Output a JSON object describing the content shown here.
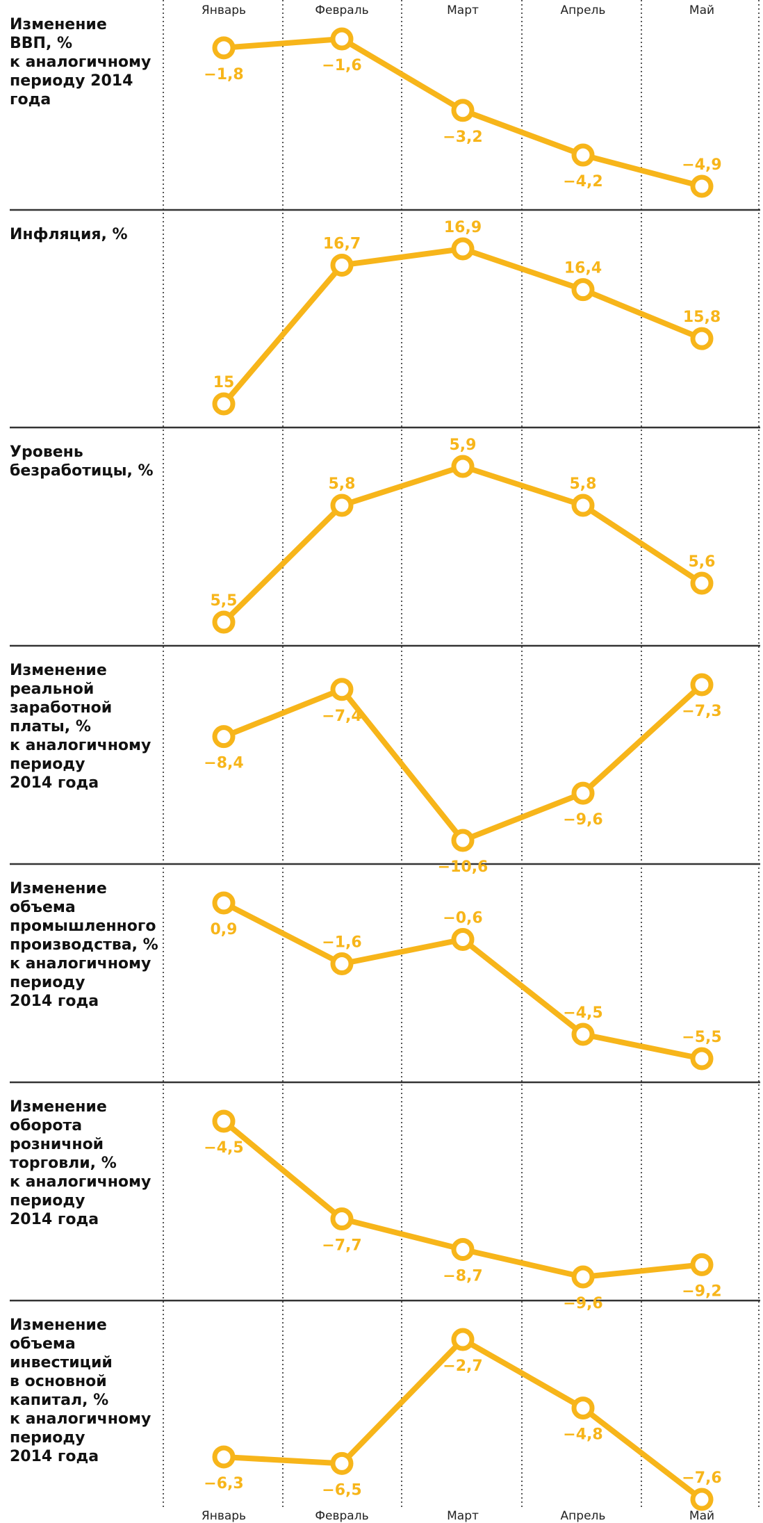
{
  "months": [
    "Январь",
    "Февраль",
    "Март",
    "Апрель",
    "Май"
  ],
  "colors": {
    "line": "#F7B51A",
    "marker_fill": "#ffffff",
    "separator": "#333333",
    "grid": "#555555"
  },
  "chart_data": [
    {
      "type": "line",
      "title_lines": [
        "Изменение",
        "ВВП, %",
        "к аналогичному",
        "периоду 2014",
        "года"
      ],
      "categories": [
        "Январь",
        "Февраль",
        "Март",
        "Апрель",
        "Май"
      ],
      "values": [
        -1.8,
        -1.6,
        -3.2,
        -4.2,
        -4.9
      ],
      "value_labels": [
        "−1,8",
        "−1,6",
        "−3,2",
        "−4,2",
        "−4,9"
      ],
      "label_positions": [
        "below",
        "below",
        "below",
        "below",
        "above"
      ]
    },
    {
      "type": "line",
      "title_lines": [
        "Инфляция, %"
      ],
      "categories": [
        "Январь",
        "Февраль",
        "Март",
        "Апрель",
        "Май"
      ],
      "values": [
        15,
        16.7,
        16.9,
        16.4,
        15.8
      ],
      "value_labels": [
        "15",
        "16,7",
        "16,9",
        "16,4",
        "15,8"
      ],
      "label_positions": [
        "above",
        "above",
        "above",
        "above",
        "above"
      ]
    },
    {
      "type": "line",
      "title_lines": [
        "Уровень",
        "безработицы, %"
      ],
      "categories": [
        "Январь",
        "Февраль",
        "Март",
        "Апрель",
        "Май"
      ],
      "values": [
        5.5,
        5.8,
        5.9,
        5.8,
        5.6
      ],
      "value_labels": [
        "5,5",
        "5,8",
        "5,9",
        "5,8",
        "5,6"
      ],
      "label_positions": [
        "above",
        "above",
        "above",
        "above",
        "above"
      ]
    },
    {
      "type": "line",
      "title_lines": [
        "Изменение",
        "реальной",
        "заработной",
        "платы, %",
        "к аналогичному",
        "периоду",
        "2014 года"
      ],
      "categories": [
        "Январь",
        "Февраль",
        "Март",
        "Апрель",
        "Май"
      ],
      "values": [
        -8.4,
        -7.4,
        -10.6,
        -9.6,
        -7.3
      ],
      "value_labels": [
        "−8,4",
        "−7,4",
        "−10,6",
        "−9,6",
        "−7,3"
      ],
      "label_positions": [
        "below",
        "below",
        "below",
        "below",
        "below"
      ]
    },
    {
      "type": "line",
      "title_lines": [
        "Изменение",
        "объема",
        "промышленного",
        "производства, %",
        "к аналогичному",
        "периоду",
        "2014 года"
      ],
      "categories": [
        "Январь",
        "Февраль",
        "Март",
        "Апрель",
        "Май"
      ],
      "values": [
        0.9,
        -1.6,
        -0.6,
        -4.5,
        -5.5
      ],
      "value_labels": [
        "0,9",
        "−1,6",
        "−0,6",
        "−4,5",
        "−5,5"
      ],
      "label_positions": [
        "below",
        "above",
        "above",
        "above",
        "above"
      ]
    },
    {
      "type": "line",
      "title_lines": [
        "Изменение",
        "оборота",
        "розничной",
        "торговли, %",
        "к аналогичному",
        "периоду",
        "2014 года"
      ],
      "categories": [
        "Январь",
        "Февраль",
        "Март",
        "Апрель",
        "Май"
      ],
      "values": [
        -4.5,
        -7.7,
        -8.7,
        -9.6,
        -9.2
      ],
      "value_labels": [
        "−4,5",
        "−7,7",
        "−8,7",
        "−9,6",
        "−9,2"
      ],
      "label_positions": [
        "below",
        "below",
        "below",
        "below",
        "below"
      ]
    },
    {
      "type": "line",
      "title_lines": [
        "Изменение",
        "объема",
        "инвестиций",
        "в основной",
        "капитал, %",
        "к аналогичному",
        "периоду",
        "2014 года"
      ],
      "categories": [
        "Январь",
        "Февраль",
        "Март",
        "Апрель",
        "Май"
      ],
      "values": [
        -6.3,
        -6.5,
        -2.7,
        -4.8,
        -7.6
      ],
      "value_labels": [
        "−6,3",
        "−6,5",
        "−2,7",
        "−4,8",
        "−7,6"
      ],
      "label_positions": [
        "below",
        "below",
        "below",
        "below",
        "above"
      ]
    }
  ]
}
